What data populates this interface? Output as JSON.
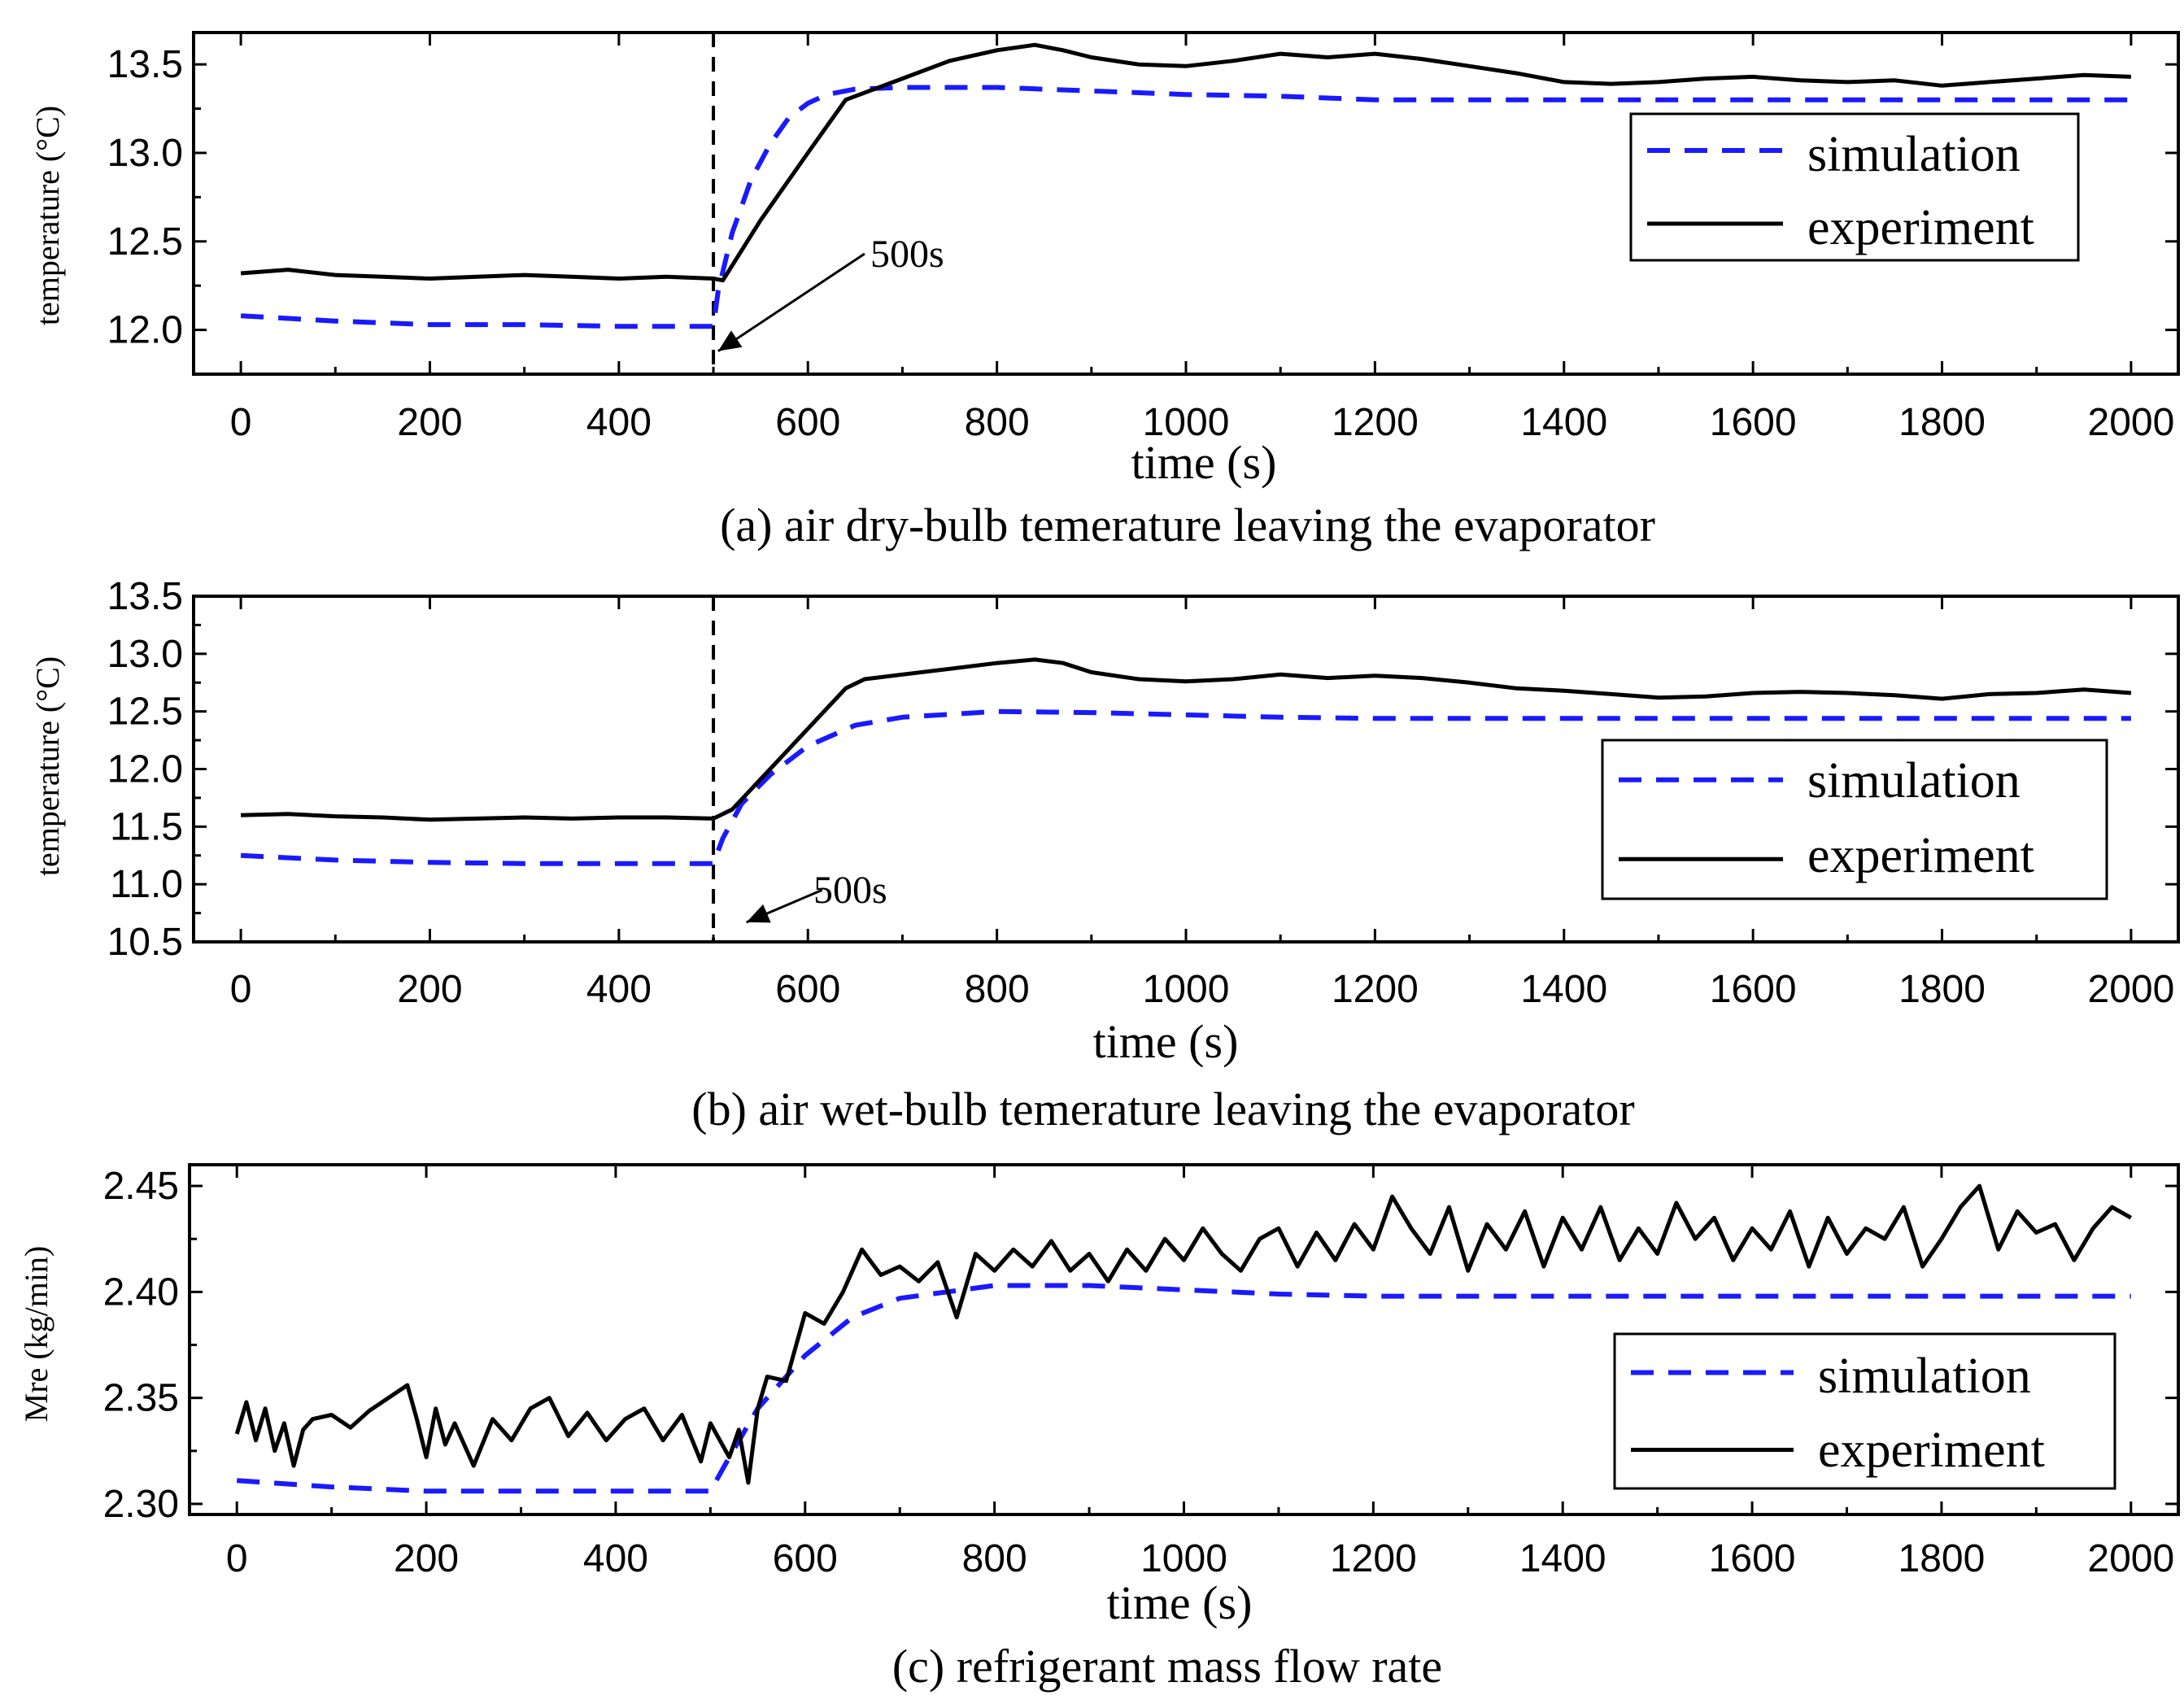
{
  "chart_data": [
    {
      "type": "line",
      "panel": "a",
      "caption": "(a) air dry-bulb temerature leaving the evaporator",
      "xlabel": "time (s)",
      "ylabel": "temperature (°C)",
      "xlim": [
        -50,
        2050
      ],
      "ylim": [
        11.75,
        13.68
      ],
      "xticks": [
        0,
        200,
        400,
        600,
        800,
        1000,
        1200,
        1400,
        1600,
        1800,
        2000
      ],
      "yticks": [
        12.0,
        12.5,
        13.0,
        13.5
      ],
      "xtick_labels": [
        "0",
        "200",
        "400",
        "600",
        "800",
        "1000",
        "1200",
        "1400",
        "1600",
        "1800",
        "2000"
      ],
      "ytick_labels": [
        "12.0",
        "12.5",
        "13.0",
        "13.5"
      ],
      "vline_x": 500,
      "annotation": {
        "text": "500s",
        "x": 505,
        "y": 11.88,
        "label_x": 660,
        "label_y": 12.43
      },
      "legend": {
        "position": "right",
        "entries": [
          "simulation",
          "experiment"
        ]
      },
      "series": [
        {
          "name": "simulation",
          "style": "dashed",
          "color": "#1a1aff",
          "x": [
            0,
            100,
            200,
            300,
            400,
            500,
            505,
            520,
            540,
            560,
            580,
            600,
            620,
            650,
            700,
            800,
            900,
            1000,
            1100,
            1200,
            1400,
            1600,
            1800,
            2000
          ],
          "y": [
            12.08,
            12.05,
            12.03,
            12.03,
            12.02,
            12.02,
            12.22,
            12.55,
            12.85,
            13.05,
            13.2,
            13.28,
            13.33,
            13.36,
            13.37,
            13.37,
            13.35,
            13.33,
            13.32,
            13.3,
            13.3,
            13.3,
            13.3,
            13.3
          ]
        },
        {
          "name": "experiment",
          "style": "solid",
          "color": "#000000",
          "x": [
            0,
            50,
            100,
            150,
            200,
            250,
            300,
            350,
            400,
            450,
            500,
            510,
            550,
            600,
            640,
            700,
            750,
            800,
            840,
            870,
            900,
            950,
            1000,
            1050,
            1100,
            1150,
            1200,
            1250,
            1300,
            1350,
            1400,
            1450,
            1500,
            1550,
            1600,
            1650,
            1700,
            1750,
            1800,
            1850,
            1900,
            1950,
            2000
          ],
          "y": [
            12.32,
            12.34,
            12.31,
            12.3,
            12.29,
            12.3,
            12.31,
            12.3,
            12.29,
            12.3,
            12.29,
            12.28,
            12.62,
            13.0,
            13.3,
            13.42,
            13.52,
            13.58,
            13.61,
            13.58,
            13.54,
            13.5,
            13.49,
            13.52,
            13.56,
            13.54,
            13.56,
            13.53,
            13.49,
            13.45,
            13.4,
            13.39,
            13.4,
            13.42,
            13.43,
            13.41,
            13.4,
            13.41,
            13.38,
            13.4,
            13.42,
            13.44,
            13.43
          ]
        }
      ]
    },
    {
      "type": "line",
      "panel": "b",
      "caption": "(b) air wet-bulb temerature leaving the evaporator",
      "xlabel": "time (s)",
      "ylabel": "temperature (°C)",
      "xlim": [
        -50,
        2050
      ],
      "ylim": [
        10.5,
        13.5
      ],
      "xticks": [
        0,
        200,
        400,
        600,
        800,
        1000,
        1200,
        1400,
        1600,
        1800,
        2000
      ],
      "yticks": [
        10.5,
        11.0,
        11.5,
        12.0,
        12.5,
        13.0,
        13.5
      ],
      "xtick_labels": [
        "0",
        "200",
        "400",
        "600",
        "800",
        "1000",
        "1200",
        "1400",
        "1600",
        "1800",
        "2000"
      ],
      "ytick_labels": [
        "10.5",
        "11.0",
        "11.5",
        "12.0",
        "12.5",
        "13.0",
        "13.5"
      ],
      "vline_x": 500,
      "annotation": {
        "text": "500s",
        "x": 535,
        "y": 10.67,
        "label_x": 615,
        "label_y": 10.95
      },
      "legend": {
        "position": "right",
        "entries": [
          "simulation",
          "experiment"
        ]
      },
      "series": [
        {
          "name": "simulation",
          "style": "dashed",
          "color": "#1a1aff",
          "x": [
            0,
            100,
            200,
            300,
            400,
            500,
            510,
            530,
            560,
            600,
            650,
            700,
            800,
            900,
            1000,
            1100,
            1200,
            1400,
            1600,
            1800,
            2000
          ],
          "y": [
            11.25,
            11.21,
            11.19,
            11.18,
            11.18,
            11.18,
            11.4,
            11.7,
            11.95,
            12.2,
            12.38,
            12.45,
            12.5,
            12.49,
            12.47,
            12.45,
            12.44,
            12.44,
            12.44,
            12.44,
            12.44
          ]
        },
        {
          "name": "experiment",
          "style": "solid",
          "color": "#000000",
          "x": [
            0,
            50,
            100,
            150,
            200,
            250,
            300,
            350,
            400,
            450,
            500,
            520,
            560,
            600,
            640,
            660,
            700,
            750,
            800,
            840,
            870,
            900,
            950,
            1000,
            1050,
            1100,
            1150,
            1200,
            1250,
            1300,
            1350,
            1400,
            1450,
            1500,
            1550,
            1600,
            1650,
            1700,
            1750,
            1800,
            1850,
            1900,
            1950,
            2000
          ],
          "y": [
            11.6,
            11.61,
            11.59,
            11.58,
            11.56,
            11.57,
            11.58,
            11.57,
            11.58,
            11.58,
            11.57,
            11.65,
            12.0,
            12.35,
            12.7,
            12.78,
            12.82,
            12.87,
            12.92,
            12.95,
            12.92,
            12.84,
            12.78,
            12.76,
            12.78,
            12.82,
            12.79,
            12.81,
            12.79,
            12.75,
            12.7,
            12.68,
            12.65,
            12.62,
            12.63,
            12.66,
            12.67,
            12.66,
            12.64,
            12.61,
            12.65,
            12.66,
            12.69,
            12.66
          ]
        }
      ]
    },
    {
      "type": "line",
      "panel": "c",
      "caption": "(c) refrigerant mass flow rate",
      "xlabel": "time (s)",
      "ylabel": "Mre (kg/min)",
      "xlim": [
        -50,
        2050
      ],
      "ylim": [
        2.295,
        2.46
      ],
      "xticks": [
        0,
        200,
        400,
        600,
        800,
        1000,
        1200,
        1400,
        1600,
        1800,
        2000
      ],
      "yticks": [
        2.3,
        2.35,
        2.4,
        2.45
      ],
      "xtick_labels": [
        "0",
        "200",
        "400",
        "600",
        "800",
        "1000",
        "1200",
        "1400",
        "1600",
        "1800",
        "2000"
      ],
      "ytick_labels": [
        "2.30",
        "2.35",
        "2.40",
        "2.45"
      ],
      "legend": {
        "position": "right",
        "entries": [
          "simulation",
          "experiment"
        ]
      },
      "series": [
        {
          "name": "simulation",
          "style": "dashed",
          "color": "#1a1aff",
          "x": [
            0,
            100,
            200,
            300,
            400,
            500,
            520,
            550,
            600,
            650,
            700,
            800,
            900,
            1000,
            1100,
            1200,
            1400,
            1600,
            1800,
            2000
          ],
          "y": [
            2.311,
            2.308,
            2.306,
            2.306,
            2.306,
            2.306,
            2.322,
            2.345,
            2.37,
            2.388,
            2.397,
            2.403,
            2.403,
            2.401,
            2.399,
            2.398,
            2.398,
            2.398,
            2.398,
            2.398
          ]
        },
        {
          "name": "experiment",
          "style": "solid",
          "color": "#000000",
          "x": [
            0,
            10,
            20,
            30,
            40,
            50,
            60,
            70,
            80,
            100,
            120,
            140,
            160,
            180,
            190,
            200,
            210,
            220,
            230,
            250,
            270,
            290,
            310,
            330,
            350,
            370,
            390,
            410,
            430,
            450,
            470,
            490,
            500,
            510,
            520,
            530,
            540,
            550,
            560,
            580,
            600,
            620,
            640,
            660,
            680,
            700,
            720,
            740,
            760,
            780,
            800,
            820,
            840,
            860,
            880,
            900,
            920,
            940,
            960,
            980,
            1000,
            1020,
            1040,
            1060,
            1080,
            1100,
            1120,
            1140,
            1160,
            1180,
            1200,
            1220,
            1240,
            1260,
            1280,
            1300,
            1320,
            1340,
            1360,
            1380,
            1400,
            1420,
            1440,
            1460,
            1480,
            1500,
            1520,
            1540,
            1560,
            1580,
            1600,
            1620,
            1640,
            1660,
            1680,
            1700,
            1720,
            1740,
            1760,
            1780,
            1800,
            1820,
            1840,
            1860,
            1880,
            1900,
            1920,
            1940,
            1960,
            1980,
            2000
          ],
          "y": [
            2.333,
            2.348,
            2.33,
            2.345,
            2.325,
            2.338,
            2.318,
            2.335,
            2.34,
            2.342,
            2.336,
            2.344,
            2.35,
            2.356,
            2.34,
            2.322,
            2.345,
            2.328,
            2.338,
            2.318,
            2.34,
            2.33,
            2.345,
            2.35,
            2.332,
            2.343,
            2.33,
            2.34,
            2.345,
            2.33,
            2.342,
            2.32,
            2.338,
            2.33,
            2.322,
            2.335,
            2.31,
            2.345,
            2.36,
            2.358,
            2.39,
            2.385,
            2.4,
            2.42,
            2.408,
            2.412,
            2.405,
            2.414,
            2.388,
            2.418,
            2.41,
            2.42,
            2.412,
            2.424,
            2.41,
            2.418,
            2.405,
            2.42,
            2.41,
            2.425,
            2.415,
            2.43,
            2.418,
            2.41,
            2.425,
            2.43,
            2.412,
            2.428,
            2.415,
            2.432,
            2.42,
            2.445,
            2.43,
            2.418,
            2.44,
            2.41,
            2.432,
            2.42,
            2.438,
            2.412,
            2.435,
            2.42,
            2.44,
            2.415,
            2.43,
            2.418,
            2.442,
            2.425,
            2.435,
            2.415,
            2.43,
            2.42,
            2.438,
            2.412,
            2.435,
            2.418,
            2.43,
            2.425,
            2.44,
            2.412,
            2.425,
            2.44,
            2.45,
            2.42,
            2.438,
            2.428,
            2.432,
            2.415,
            2.43,
            2.44,
            2.435
          ]
        }
      ]
    }
  ]
}
